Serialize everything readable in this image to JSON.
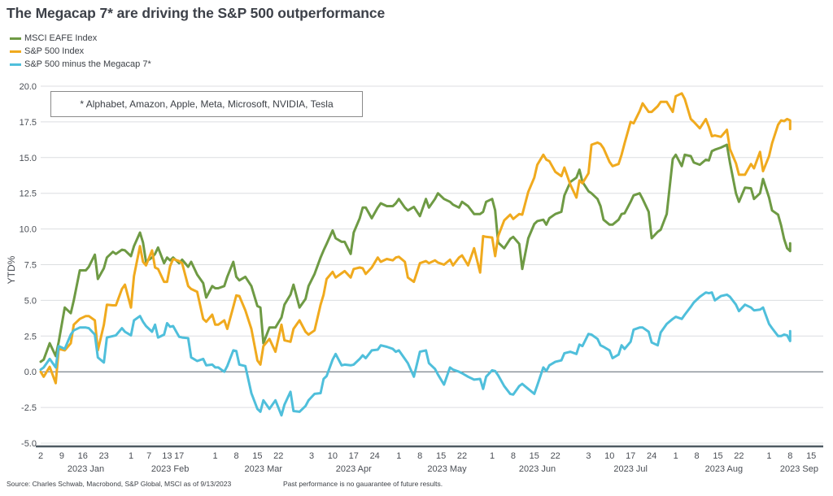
{
  "title": "The Megacap 7* are driving the S&P 500 outperformance",
  "note": "* Alphabet, Amazon, Apple, Meta, Microsoft, NVIDIA, Tesla",
  "footer": {
    "source": "Source: Charles Schwab, Macrobond, S&P Global, MSCI as of 9/13/2023",
    "disclaimer": "Past performance is no gauarantee of future results."
  },
  "chart_data": {
    "type": "line",
    "title": "The Megacap 7* are driving the S&P 500 outperformance",
    "xlabel": "",
    "ylabel": "YTD%",
    "ylim": [
      -5,
      20
    ],
    "yticks": [
      "20.0",
      "17.5",
      "15.0",
      "12.5",
      "10.0",
      "7.5",
      "5.0",
      "2.5",
      "0.0",
      "-2.5",
      "-5.0"
    ],
    "ytick_values": [
      20,
      17.5,
      15,
      12.5,
      10,
      7.5,
      5,
      2.5,
      0,
      -2.5,
      -5
    ],
    "grid": true,
    "legend_position": "top-left",
    "x_unit": "days since 2023-01-02",
    "xlim": [
      0,
      256
    ],
    "xticks": [
      {
        "label": "2",
        "day": 0
      },
      {
        "label": "9",
        "day": 7
      },
      {
        "label": "16",
        "day": 14
      },
      {
        "label": "23",
        "day": 21
      },
      {
        "label": "1",
        "day": 30
      },
      {
        "label": "7",
        "day": 36
      },
      {
        "label": "13",
        "day": 42
      },
      {
        "label": "17",
        "day": 46
      },
      {
        "label": "1",
        "day": 58
      },
      {
        "label": "8",
        "day": 65
      },
      {
        "label": "15",
        "day": 72
      },
      {
        "label": "22",
        "day": 79
      },
      {
        "label": "3",
        "day": 90
      },
      {
        "label": "10",
        "day": 97
      },
      {
        "label": "17",
        "day": 104
      },
      {
        "label": "24",
        "day": 111
      },
      {
        "label": "1",
        "day": 119
      },
      {
        "label": "8",
        "day": 126
      },
      {
        "label": "15",
        "day": 133
      },
      {
        "label": "22",
        "day": 140
      },
      {
        "label": "1",
        "day": 150
      },
      {
        "label": "8",
        "day": 157
      },
      {
        "label": "15",
        "day": 164
      },
      {
        "label": "22",
        "day": 171
      },
      {
        "label": "3",
        "day": 182
      },
      {
        "label": "10",
        "day": 189
      },
      {
        "label": "17",
        "day": 196
      },
      {
        "label": "24",
        "day": 203
      },
      {
        "label": "1",
        "day": 211
      },
      {
        "label": "8",
        "day": 218
      },
      {
        "label": "15",
        "day": 225
      },
      {
        "label": "22",
        "day": 232
      },
      {
        "label": "1",
        "day": 242
      },
      {
        "label": "8",
        "day": 249
      },
      {
        "label": "15",
        "day": 256
      }
    ],
    "month_labels": [
      {
        "label": "2023 Jan",
        "day": 15
      },
      {
        "label": "2023 Feb",
        "day": 43
      },
      {
        "label": "2023 Mar",
        "day": 74
      },
      {
        "label": "2023 Apr",
        "day": 104
      },
      {
        "label": "2023 May",
        "day": 135
      },
      {
        "label": "2023 Jun",
        "day": 165
      },
      {
        "label": "2023 Jul",
        "day": 196
      },
      {
        "label": "2023 Aug",
        "day": 227
      },
      {
        "label": "2023 Sep",
        "day": 252
      }
    ],
    "series": [
      {
        "name": "MSCI EAFE Index",
        "color": "#6e9a44",
        "days": [
          0,
          1,
          3,
          5,
          6,
          8,
          10,
          11,
          13,
          15,
          16,
          18,
          19,
          21,
          22,
          24,
          25,
          27,
          28,
          30,
          31,
          33,
          34,
          35,
          37,
          38,
          39,
          41,
          42,
          43,
          44,
          46,
          47,
          49,
          50,
          52,
          54,
          55,
          57,
          58,
          59,
          61,
          62,
          64,
          65,
          66,
          68,
          70,
          72,
          73,
          74,
          76,
          78,
          80,
          81,
          83,
          84,
          86,
          88,
          89,
          91,
          93,
          94,
          95,
          97,
          98,
          100,
          101,
          103,
          104,
          106,
          107,
          108,
          110,
          112,
          113,
          115,
          117,
          118,
          119,
          121,
          122,
          124,
          126,
          128,
          129,
          131,
          132,
          134,
          136,
          137,
          139,
          140,
          142,
          144,
          146,
          147,
          148,
          150,
          151,
          152,
          154,
          156,
          157,
          159,
          160,
          162,
          164,
          165,
          167,
          168,
          169,
          171,
          173,
          174,
          176,
          178,
          179,
          180,
          182,
          183,
          185,
          186,
          187,
          189,
          190,
          192,
          193,
          194,
          196,
          197,
          199,
          200,
          202,
          203,
          205,
          206,
          208,
          210,
          211,
          213,
          214,
          216,
          217,
          219,
          221,
          222,
          223,
          224,
          226,
          228,
          229,
          231,
          232,
          234,
          236,
          237,
          239,
          240,
          242,
          243,
          245,
          246,
          247,
          248,
          249,
          249
        ],
        "values": [
          0.7,
          0.85,
          2.0,
          1.1,
          2.1,
          4.5,
          4.1,
          5.0,
          7.1,
          7.1,
          7.35,
          8.2,
          6.5,
          7.25,
          8.0,
          8.4,
          8.25,
          8.55,
          8.5,
          8.1,
          8.8,
          9.75,
          9.05,
          7.7,
          8.0,
          8.25,
          8.7,
          7.6,
          8.0,
          7.8,
          8.0,
          7.6,
          7.85,
          7.35,
          7.7,
          6.8,
          6.2,
          5.2,
          6.0,
          5.85,
          5.85,
          6.0,
          6.65,
          7.7,
          6.65,
          6.4,
          6.65,
          6.0,
          4.6,
          4.5,
          2.0,
          3.1,
          3.1,
          3.8,
          4.7,
          5.4,
          6.1,
          4.5,
          5.1,
          6.0,
          6.85,
          8.0,
          8.5,
          8.95,
          9.9,
          9.35,
          9.1,
          9.1,
          8.25,
          9.75,
          10.75,
          11.5,
          11.5,
          10.75,
          11.5,
          11.8,
          11.6,
          11.6,
          11.8,
          12.1,
          11.5,
          11.3,
          11.55,
          10.9,
          12.1,
          11.5,
          12.1,
          12.5,
          12.1,
          11.9,
          11.7,
          11.5,
          11.9,
          11.6,
          11.05,
          11.05,
          11.2,
          11.9,
          12.1,
          11.3,
          9.05,
          8.65,
          9.3,
          9.45,
          8.95,
          7.2,
          9.35,
          10.35,
          10.55,
          10.65,
          10.3,
          10.75,
          11.05,
          11.2,
          12.35,
          13.3,
          13.6,
          14.15,
          13.3,
          12.65,
          12.5,
          12.1,
          11.6,
          10.65,
          10.3,
          10.3,
          10.65,
          11.05,
          11.1,
          11.9,
          12.35,
          12.5,
          12.1,
          11.2,
          9.35,
          9.8,
          9.95,
          11.05,
          14.9,
          15.2,
          14.4,
          15.2,
          15.1,
          14.65,
          14.5,
          14.85,
          14.8,
          15.45,
          15.55,
          15.7,
          15.9,
          14.65,
          12.5,
          11.9,
          12.9,
          12.85,
          12.1,
          12.5,
          13.5,
          12.2,
          11.3,
          11.0,
          10.25,
          9.3,
          8.65,
          8.45,
          9.0,
          9.75,
          9.4,
          8.4,
          10.35,
          11.75,
          11.35,
          11.05,
          11.1,
          10.25,
          10.0,
          9.85,
          9.7,
          10.3,
          10.1
        ]
      },
      {
        "name": "S&P 500 Index",
        "color": "#f0aa1e",
        "days": [
          0,
          1,
          3,
          5,
          6,
          8,
          10,
          11,
          13,
          15,
          16,
          18,
          19,
          21,
          22,
          24,
          25,
          27,
          28,
          30,
          31,
          33,
          34,
          35,
          37,
          38,
          39,
          41,
          42,
          43,
          44,
          46,
          47,
          49,
          50,
          52,
          54,
          55,
          57,
          58,
          59,
          61,
          62,
          64,
          65,
          66,
          68,
          70,
          72,
          73,
          74,
          76,
          78,
          80,
          81,
          83,
          84,
          86,
          88,
          89,
          91,
          93,
          94,
          95,
          97,
          98,
          100,
          101,
          103,
          104,
          106,
          107,
          108,
          110,
          112,
          113,
          115,
          117,
          118,
          119,
          121,
          122,
          124,
          126,
          128,
          129,
          131,
          132,
          134,
          136,
          137,
          139,
          140,
          142,
          144,
          146,
          147,
          148,
          150,
          151,
          152,
          154,
          156,
          157,
          159,
          160,
          162,
          164,
          165,
          167,
          168,
          169,
          171,
          173,
          174,
          176,
          178,
          179,
          180,
          182,
          183,
          185,
          186,
          187,
          189,
          190,
          192,
          193,
          194,
          196,
          197,
          199,
          200,
          202,
          203,
          205,
          206,
          208,
          210,
          211,
          213,
          214,
          216,
          217,
          219,
          221,
          222,
          223,
          224,
          226,
          228,
          229,
          231,
          232,
          234,
          236,
          237,
          239,
          240,
          242,
          243,
          245,
          246,
          247,
          248,
          249,
          249
        ],
        "values": [
          0.0,
          -0.35,
          0.35,
          -0.8,
          1.6,
          1.5,
          2.0,
          3.3,
          3.7,
          3.9,
          3.9,
          3.6,
          1.5,
          3.3,
          4.7,
          4.65,
          4.65,
          5.8,
          6.1,
          4.5,
          6.7,
          8.8,
          7.7,
          7.45,
          8.5,
          7.3,
          7.2,
          6.3,
          6.3,
          7.4,
          7.9,
          7.75,
          7.6,
          6.0,
          5.8,
          5.6,
          3.7,
          3.5,
          4.0,
          3.3,
          3.3,
          3.6,
          3.0,
          4.55,
          5.35,
          5.3,
          4.3,
          3.0,
          0.8,
          0.5,
          1.8,
          2.3,
          1.4,
          3.3,
          2.2,
          2.1,
          3.0,
          3.6,
          2.8,
          2.6,
          2.9,
          4.7,
          5.4,
          6.5,
          7.0,
          6.6,
          6.9,
          7.05,
          6.6,
          7.2,
          7.3,
          7.25,
          6.85,
          7.3,
          8.0,
          7.7,
          7.9,
          7.8,
          8.0,
          8.05,
          7.7,
          6.6,
          6.3,
          7.6,
          7.75,
          7.6,
          7.8,
          7.65,
          7.5,
          7.85,
          7.45,
          8.0,
          8.15,
          7.45,
          8.65,
          6.95,
          9.5,
          9.45,
          9.4,
          8.1,
          9.5,
          10.6,
          11.0,
          10.7,
          11.05,
          11.0,
          12.6,
          13.6,
          14.5,
          15.2,
          14.85,
          14.75,
          14.0,
          13.7,
          14.3,
          13.1,
          12.2,
          13.4,
          13.2,
          13.9,
          15.9,
          16.05,
          15.95,
          15.65,
          14.7,
          14.4,
          14.55,
          15.2,
          16.0,
          17.5,
          17.4,
          18.25,
          18.8,
          18.2,
          18.2,
          18.6,
          18.9,
          18.9,
          18.2,
          19.3,
          19.5,
          19.1,
          17.7,
          17.5,
          17.05,
          17.7,
          17.15,
          16.5,
          16.55,
          16.45,
          16.95,
          15.6,
          14.6,
          13.8,
          13.8,
          14.55,
          14.25,
          15.4,
          14.05,
          15.1,
          16.0,
          17.3,
          17.6,
          17.55,
          17.7,
          17.6,
          17.0,
          16.3,
          16.1,
          16.3,
          16.8,
          16.4
        ]
      },
      {
        "name": "S&P 500 minus the Megacap 7*",
        "color": "#4fbfdb",
        "days": [
          0,
          1,
          3,
          5,
          6,
          8,
          10,
          11,
          13,
          15,
          16,
          18,
          19,
          21,
          22,
          24,
          25,
          27,
          28,
          30,
          31,
          33,
          34,
          35,
          37,
          38,
          39,
          41,
          42,
          43,
          44,
          46,
          47,
          49,
          50,
          52,
          54,
          55,
          57,
          58,
          59,
          61,
          62,
          64,
          65,
          66,
          68,
          70,
          72,
          73,
          74,
          76,
          78,
          80,
          81,
          83,
          84,
          86,
          88,
          89,
          91,
          93,
          94,
          95,
          97,
          98,
          100,
          101,
          103,
          104,
          106,
          107,
          108,
          110,
          112,
          113,
          115,
          117,
          118,
          119,
          121,
          122,
          124,
          126,
          128,
          129,
          131,
          132,
          134,
          136,
          137,
          139,
          140,
          142,
          144,
          146,
          147,
          148,
          150,
          151,
          152,
          154,
          156,
          157,
          159,
          160,
          162,
          164,
          165,
          167,
          168,
          169,
          171,
          173,
          174,
          176,
          178,
          179,
          180,
          182,
          183,
          185,
          186,
          187,
          189,
          190,
          192,
          193,
          194,
          196,
          197,
          199,
          200,
          202,
          203,
          205,
          206,
          208,
          210,
          211,
          213,
          214,
          216,
          217,
          219,
          221,
          222,
          223,
          224,
          226,
          228,
          229,
          231,
          232,
          234,
          236,
          237,
          239,
          240,
          242,
          243,
          245,
          246,
          247,
          248,
          249,
          249
        ],
        "values": [
          0.15,
          0.3,
          0.9,
          0.3,
          1.8,
          1.6,
          2.6,
          2.9,
          3.1,
          3.1,
          3.05,
          2.6,
          1.0,
          0.65,
          2.4,
          2.5,
          2.55,
          3.05,
          2.8,
          2.55,
          3.6,
          3.9,
          3.5,
          3.2,
          2.8,
          3.3,
          2.4,
          2.6,
          3.4,
          3.15,
          3.2,
          2.45,
          2.4,
          2.35,
          1.0,
          0.75,
          0.9,
          0.45,
          0.5,
          0.3,
          0.3,
          0.0,
          0.4,
          1.5,
          1.45,
          0.5,
          0.4,
          -1.5,
          -2.6,
          -2.8,
          -2.0,
          -2.6,
          -2.0,
          -3.05,
          -2.3,
          -1.4,
          -2.75,
          -2.8,
          -2.4,
          -2.0,
          -1.55,
          -1.5,
          -0.5,
          -0.3,
          0.85,
          1.25,
          0.45,
          0.5,
          0.45,
          0.5,
          0.9,
          1.15,
          0.95,
          1.5,
          1.55,
          1.85,
          1.75,
          1.6,
          1.4,
          1.5,
          0.9,
          0.6,
          -0.35,
          1.4,
          1.5,
          0.6,
          0.2,
          -0.2,
          -0.9,
          0.3,
          0.15,
          0.0,
          -0.1,
          -0.35,
          -0.55,
          -0.5,
          -1.2,
          -0.35,
          0.1,
          0.05,
          -0.25,
          -1.0,
          -1.55,
          -1.6,
          -1.0,
          -0.85,
          -1.2,
          -1.55,
          -0.95,
          0.3,
          0.05,
          0.45,
          0.7,
          0.8,
          1.3,
          1.4,
          1.25,
          1.9,
          1.8,
          2.65,
          2.6,
          2.3,
          1.85,
          1.75,
          1.5,
          0.95,
          1.2,
          1.85,
          1.6,
          2.1,
          2.95,
          3.1,
          3.1,
          2.8,
          2.05,
          1.85,
          2.75,
          3.35,
          3.7,
          3.85,
          3.7,
          4.0,
          4.55,
          4.85,
          5.25,
          5.55,
          5.5,
          5.55,
          5.0,
          5.3,
          5.4,
          5.25,
          4.7,
          4.25,
          4.7,
          4.5,
          4.3,
          4.35,
          4.5,
          3.35,
          3.05,
          2.5,
          2.5,
          2.6,
          2.55,
          2.15,
          2.85,
          2.65,
          3.0,
          3.85,
          4.0,
          3.75,
          4.05,
          4.05,
          3.5,
          3.2,
          3.1,
          3.15,
          3.3,
          3.2
        ]
      }
    ]
  }
}
